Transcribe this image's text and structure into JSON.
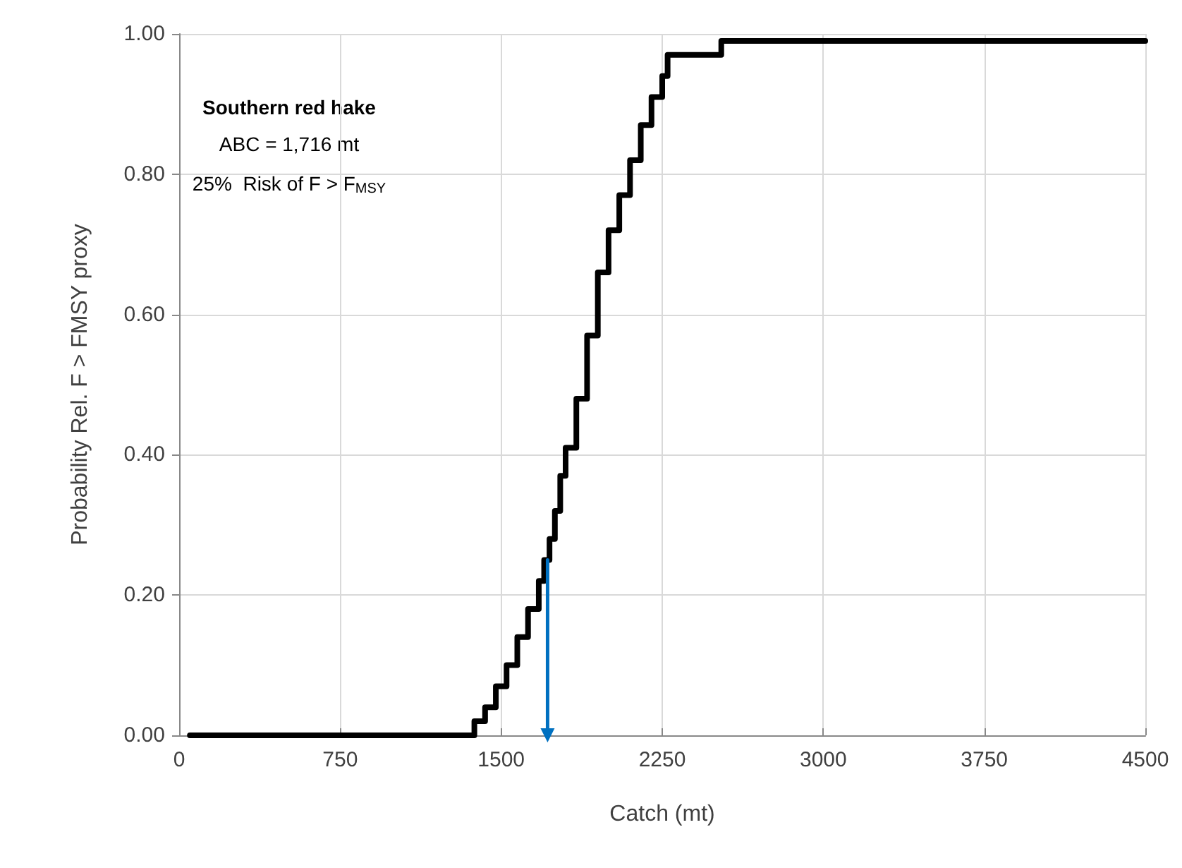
{
  "chart_data": {
    "type": "step",
    "xlabel": "Catch (mt)",
    "ylabel": "Probability Rel. F > FMSY proxy",
    "annotations": [
      "Southern red hake",
      "ABC = 1,716 mt",
      "25%  Risk of F > F$_{MSY}$"
    ],
    "series": [
      {
        "color": "#000000",
        "x": [
          50,
          1375,
          1425,
          1475,
          1525,
          1575,
          1625,
          1675,
          1700,
          1725,
          1750,
          1775,
          1800,
          1850,
          1900,
          1950,
          2000,
          2050,
          2100,
          2150,
          2200,
          2250,
          2275,
          2525,
          4500
        ],
        "values": [
          0,
          0.02,
          0.04,
          0.07,
          0.1,
          0.14,
          0.18,
          0.22,
          0.25,
          0.28,
          0.32,
          0.37,
          0.41,
          0.48,
          0.57,
          0.66,
          0.72,
          0.77,
          0.82,
          0.87,
          0.91,
          0.94,
          0.97,
          0.99,
          0.99
        ]
      },
      {
        "type": "line",
        "marker": "triangle",
        "color": "#0070c0",
        "x": [
          1716,
          1716
        ],
        "values": [
          0.25,
          0
        ]
      }
    ],
    "xlim": [
      0,
      4500
    ],
    "xticks": [
      0,
      750,
      1500,
      2250,
      3000,
      3750,
      4500
    ],
    "ylim": [
      0,
      1
    ],
    "yticks": [
      {
        "value": 0,
        "label": "0.00"
      },
      {
        "value": 0.2,
        "label": "0.20"
      },
      {
        "value": 0.4,
        "label": "0.40"
      },
      {
        "value": 0.6,
        "label": "0.60"
      },
      {
        "value": 0.8,
        "label": "0.80"
      },
      {
        "value": 1,
        "label": "1.00"
      }
    ],
    "grid": true,
    "marker": "none",
    "line_style": "solid"
  }
}
